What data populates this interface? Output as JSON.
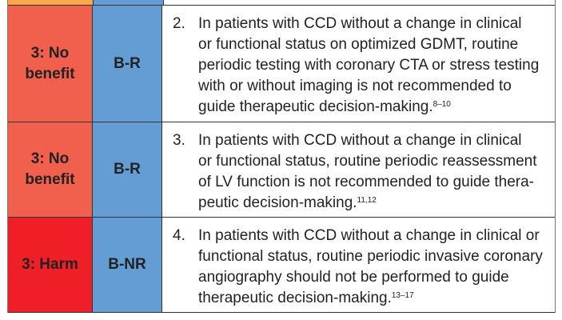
{
  "colors": {
    "no_benefit": "#f15f4d",
    "harm": "#ee1f27",
    "loe_blue": "#639dd4",
    "prev_orange": "#f8a84a"
  },
  "rows": [
    {
      "cor": [
        "3: No",
        "benefit"
      ],
      "loe": "B-R",
      "number": "2.",
      "lines": [
        "In patients with CCD without a change in clinical",
        "or functional status on optimized GDMT, routine",
        "periodic testing with coronary CTA or stress testing",
        "with or without imaging is not recommended to",
        "guide therapeutic decision-making."
      ],
      "refs": "8–10"
    },
    {
      "cor": [
        "3: No",
        "benefit"
      ],
      "loe": "B-R",
      "number": "3.",
      "lines": [
        "In patients with CCD without a change in clinical",
        "or functional status, routine periodic reassessment",
        "of LV function is not recommended to guide thera-",
        "peutic decision-making."
      ],
      "refs": "11,12"
    },
    {
      "cor": [
        "3: Harm"
      ],
      "loe": "B-NR",
      "number": "4.",
      "lines": [
        "In patients with CCD without a change in clinical or",
        "functional status, routine periodic invasive coronary",
        "angiography should not be performed to guide",
        "therapeutic decision-making."
      ],
      "refs": "13–17"
    }
  ]
}
